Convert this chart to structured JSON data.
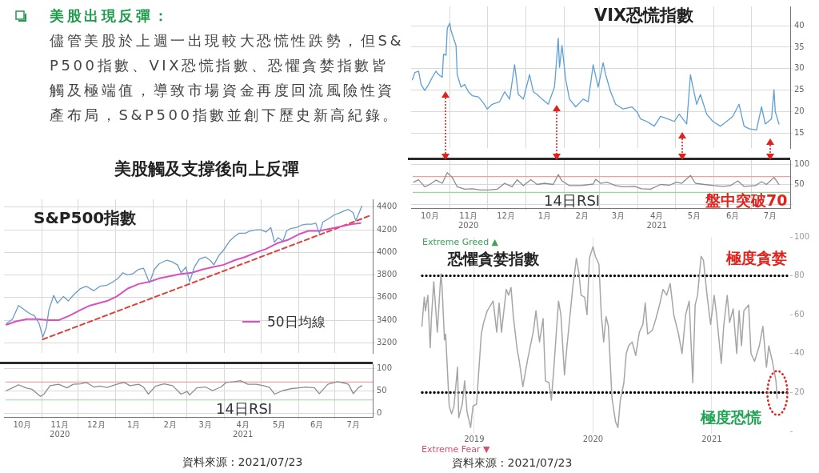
{
  "chart_data": [
    {
      "type": "other",
      "title": "美股出現反彈：",
      "subtitle": "儘管美股於上週一出現較大恐慌性跌勢，但S&P500指數、VIX恐慌指數、恐懼貪婪指數皆觸及極端值，導致市場資金再度回流風險性資產布局，S&P500指數並創下歷史新高紀錄。"
    },
    {
      "type": "line",
      "title": "美股觸及支撐後向上反彈",
      "annotations": [
        "S&P500指數"
      ],
      "xlim": [
        "2020-10-01",
        "2021-08-01"
      ],
      "xticks": [
        {
          "value": "2020-11-01",
          "label": null
        },
        {
          "value": "2020-12-01",
          "label": null
        },
        {
          "value": "2021-01-01",
          "label": null
        },
        {
          "value": "2021-02-01",
          "label": null
        },
        {
          "value": "2021-03-01",
          "label": null
        },
        {
          "value": "2021-04-01",
          "label": null
        },
        {
          "value": "2021-05-01",
          "label": null
        },
        {
          "value": "2021-06-01",
          "label": null
        },
        {
          "value": "2021-07-01",
          "label": null
        }
      ],
      "ylim": [
        3110,
        4470
      ],
      "yticks": [
        3200,
        3400,
        3600,
        3800,
        4000,
        4200,
        4400
      ],
      "tick_labels": "y",
      "grid": true,
      "legend": "bottom right",
      "series": [
        {
          "color": "#6b9bc8",
          "x": [
            "2020-10-03",
            "2020-10-08",
            "2020-10-13",
            "2020-10-18",
            "2020-10-22",
            "2020-10-26",
            "2020-10-30",
            "2020-11-02",
            "2020-11-05",
            "2020-11-07",
            "2020-11-11",
            "2020-11-14",
            "2020-11-19",
            "2020-11-23",
            "2020-11-27",
            "2020-12-03",
            "2020-12-08",
            "2020-12-14",
            "2020-12-19",
            "2020-12-25",
            "2020-12-30",
            "2021-01-03",
            "2021-01-07",
            "2021-01-11",
            "2021-01-15",
            "2021-01-20",
            "2021-01-24",
            "2021-01-29",
            "2021-02-02",
            "2021-02-06",
            "2021-02-12",
            "2021-02-16",
            "2021-02-21",
            "2021-02-24",
            "2021-02-28",
            "2021-03-03",
            "2021-03-07",
            "2021-03-11",
            "2021-03-16",
            "2021-03-20",
            "2021-03-23",
            "2021-03-27",
            "2021-03-31",
            "2021-04-05",
            "2021-04-09",
            "2021-04-13",
            "2021-04-18",
            "2021-04-22",
            "2021-04-27",
            "2021-05-01",
            "2021-05-05",
            "2021-05-09",
            "2021-05-12",
            "2021-05-15",
            "2021-05-19",
            "2021-05-22",
            "2021-05-25",
            "2021-05-30",
            "2021-06-03",
            "2021-06-07",
            "2021-06-12",
            "2021-06-15",
            "2021-06-18",
            "2021-06-21",
            "2021-06-26",
            "2021-06-30",
            "2021-07-05",
            "2021-07-09",
            "2021-07-12",
            "2021-07-16",
            "2021-07-18",
            "2021-07-20",
            "2021-07-23"
          ],
          "values": [
            3370,
            3410,
            3530,
            3490,
            3460,
            3440,
            3370,
            3250,
            3340,
            3490,
            3620,
            3550,
            3610,
            3570,
            3620,
            3680,
            3700,
            3660,
            3700,
            3710,
            3740,
            3770,
            3820,
            3800,
            3810,
            3850,
            3860,
            3730,
            3850,
            3900,
            3930,
            3920,
            3890,
            3820,
            3870,
            3740,
            3870,
            3940,
            3960,
            3930,
            3890,
            3970,
            4020,
            4100,
            4140,
            4170,
            4170,
            4190,
            4200,
            4200,
            4180,
            4220,
            4090,
            4130,
            4100,
            4190,
            4210,
            4220,
            4240,
            4250,
            4250,
            4260,
            4170,
            4270,
            4300,
            4330,
            4350,
            4370,
            4380,
            4350,
            4280,
            4330,
            4410
          ]
        },
        {
          "name": "50日均線",
          "color": "#d94fc0",
          "x": [
            "2020-10-03",
            "2020-10-11",
            "2020-10-20",
            "2020-10-29",
            "2020-11-06",
            "2020-11-15",
            "2020-11-24",
            "2020-12-03",
            "2020-12-11",
            "2020-12-25",
            "2021-01-02",
            "2021-01-11",
            "2021-01-20",
            "2021-01-29",
            "2021-02-06",
            "2021-02-15",
            "2021-02-24",
            "2021-03-05",
            "2021-03-14",
            "2021-03-22",
            "2021-03-31",
            "2021-04-09",
            "2021-04-18",
            "2021-04-27",
            "2021-05-05",
            "2021-05-14",
            "2021-05-23",
            "2021-06-01",
            "2021-06-09",
            "2021-06-18",
            "2021-06-27",
            "2021-07-06",
            "2021-07-15",
            "2021-07-22"
          ],
          "values": [
            3360,
            3390,
            3410,
            3410,
            3400,
            3400,
            3440,
            3490,
            3530,
            3570,
            3610,
            3680,
            3720,
            3740,
            3770,
            3790,
            3810,
            3820,
            3850,
            3870,
            3890,
            3930,
            3960,
            4000,
            4030,
            4080,
            4110,
            4160,
            4190,
            4190,
            4210,
            4230,
            4250,
            4260
          ]
        },
        {
          "color": "#e0413b",
          "line_style": "dashed",
          "x": [
            "2020-11-02",
            "2021-07-31"
          ],
          "values": [
            3230,
            4330
          ]
        }
      ]
    },
    {
      "type": "line",
      "annotations": [
        "14日RSI",
        "資料來源 : 2021/07/23"
      ],
      "xlim": [
        "2020-10-01",
        "2021-08-01"
      ],
      "xticks": [
        {
          "value": "2020-10-16",
          "label": "10月"
        },
        {
          "value": "2020-11-01",
          "label": null
        },
        {
          "value": "2020-11-16",
          "label": "11月\n2020"
        },
        {
          "value": "2020-12-01",
          "label": null
        },
        {
          "value": "2020-12-16",
          "label": "12月"
        },
        {
          "value": "2021-01-01",
          "label": null
        },
        {
          "value": "2021-01-16",
          "label": "1月"
        },
        {
          "value": "2021-02-01",
          "label": null
        },
        {
          "value": "2021-02-15",
          "label": "2月"
        },
        {
          "value": "2021-03-01",
          "label": null
        },
        {
          "value": "2021-03-16",
          "label": "3月"
        },
        {
          "value": "2021-04-01",
          "label": null
        },
        {
          "value": "2021-04-16",
          "label": "4月\n2021"
        },
        {
          "value": "2021-05-01",
          "label": null
        },
        {
          "value": "2021-05-16",
          "label": "5月"
        },
        {
          "value": "2021-06-01",
          "label": null
        },
        {
          "value": "2021-06-16",
          "label": "6月"
        },
        {
          "value": "2021-07-01",
          "label": null
        },
        {
          "value": "2021-07-16",
          "label": "7月"
        }
      ],
      "ylim": [
        -8,
        110
      ],
      "yticks": [
        0,
        50,
        100
      ],
      "grid": true,
      "ref_lines": [
        {
          "axis": "y",
          "value": 70,
          "color": "#f0a0a0"
        },
        {
          "axis": "y",
          "value": 30,
          "color": "#9ad89a"
        }
      ],
      "color": "#8c8c8c",
      "x": [
        "2020-10-03",
        "2020-10-08",
        "2020-10-13",
        "2020-10-19",
        "2020-10-24",
        "2020-10-31",
        "2020-11-03",
        "2020-11-08",
        "2020-11-15",
        "2020-11-22",
        "2020-11-27",
        "2020-12-03",
        "2020-12-08",
        "2020-12-14",
        "2020-12-19",
        "2020-12-25",
        "2021-01-02",
        "2021-01-08",
        "2021-01-13",
        "2021-01-20",
        "2021-01-24",
        "2021-01-28",
        "2021-02-03",
        "2021-02-10",
        "2021-02-17",
        "2021-02-24",
        "2021-03-01",
        "2021-03-03",
        "2021-03-09",
        "2021-03-16",
        "2021-03-22",
        "2021-03-29",
        "2021-04-02",
        "2021-04-09",
        "2021-04-14",
        "2021-04-20",
        "2021-04-27",
        "2021-05-03",
        "2021-05-08",
        "2021-05-12",
        "2021-05-19",
        "2021-05-25",
        "2021-06-01",
        "2021-06-07",
        "2021-06-14",
        "2021-06-18",
        "2021-06-25",
        "2021-07-03",
        "2021-07-08",
        "2021-07-12",
        "2021-07-16",
        "2021-07-20",
        "2021-07-23"
      ],
      "values": [
        51,
        57,
        64,
        57,
        54,
        38,
        43,
        62,
        65,
        57,
        65,
        66,
        69,
        59,
        61,
        58,
        65,
        69,
        62,
        65,
        59,
        43,
        61,
        66,
        62,
        43,
        49,
        41,
        57,
        59,
        51,
        59,
        69,
        71,
        73,
        65,
        65,
        62,
        58,
        43,
        51,
        55,
        57,
        59,
        57,
        44,
        65,
        71,
        68,
        65,
        44,
        57,
        62
      ]
    },
    {
      "type": "line",
      "title": "VIX恐慌指數",
      "xlim": [
        "2020-10-01",
        "2021-08-01"
      ],
      "xticks": [
        {
          "value": "2020-11-01",
          "label": null
        },
        {
          "value": "2020-12-01",
          "label": null
        },
        {
          "value": "2021-01-01",
          "label": null
        },
        {
          "value": "2021-02-01",
          "label": null
        },
        {
          "value": "2021-03-01",
          "label": null
        },
        {
          "value": "2021-04-01",
          "label": null
        },
        {
          "value": "2021-05-01",
          "label": null
        },
        {
          "value": "2021-06-01",
          "label": null
        },
        {
          "value": "2021-07-01",
          "label": null
        }
      ],
      "ylim": [
        11.5,
        44.5
      ],
      "yticks": [
        15,
        20,
        25,
        30,
        35,
        40
      ],
      "tick_labels": "y",
      "grid": true,
      "color": "#5d9fd8",
      "x": [
        "2020-10-02",
        "2020-10-04",
        "2020-10-07",
        "2020-10-09",
        "2020-10-12",
        "2020-10-15",
        "2020-10-18",
        "2020-10-21",
        "2020-10-23",
        "2020-10-26",
        "2020-10-27",
        "2020-10-29",
        "2020-10-30",
        "2020-11-01",
        "2020-11-02",
        "2020-11-04",
        "2020-11-06",
        "2020-11-07",
        "2020-11-10",
        "2020-11-13",
        "2020-11-16",
        "2020-11-19",
        "2020-11-24",
        "2020-11-28",
        "2020-12-01",
        "2020-12-05",
        "2020-12-11",
        "2020-12-15",
        "2020-12-19",
        "2020-12-23",
        "2020-12-26",
        "2020-12-30",
        "2021-01-04",
        "2021-01-07",
        "2021-01-10",
        "2021-01-14",
        "2021-01-19",
        "2021-01-24",
        "2021-01-27",
        "2021-01-28",
        "2021-01-30",
        "2021-02-02",
        "2021-02-05",
        "2021-02-10",
        "2021-02-16",
        "2021-02-20",
        "2021-02-24",
        "2021-02-28",
        "2021-03-04",
        "2021-03-06",
        "2021-03-10",
        "2021-03-14",
        "2021-03-20",
        "2021-03-27",
        "2021-03-31",
        "2021-04-03",
        "2021-04-08",
        "2021-04-14",
        "2021-04-19",
        "2021-04-25",
        "2021-04-30",
        "2021-05-04",
        "2021-05-10",
        "2021-05-13",
        "2021-05-15",
        "2021-05-18",
        "2021-05-21",
        "2021-05-26",
        "2021-05-31",
        "2021-06-06",
        "2021-06-11",
        "2021-06-16",
        "2021-06-21",
        "2021-06-25",
        "2021-06-29",
        "2021-07-05",
        "2021-07-09",
        "2021-07-12",
        "2021-07-17",
        "2021-07-19",
        "2021-07-20",
        "2021-07-23"
      ],
      "values": [
        27.4,
        29.1,
        29.4,
        26.3,
        24.9,
        26.3,
        28,
        29.4,
        28.6,
        28,
        33.4,
        33.1,
        39.4,
        40.6,
        38.9,
        37.1,
        35.4,
        28.6,
        25.7,
        26.3,
        24.6,
        23.7,
        23.4,
        22,
        20.6,
        21.7,
        22.3,
        24.6,
        22.9,
        30.9,
        24,
        22.9,
        28.6,
        24.6,
        24,
        22.9,
        21.7,
        25.7,
        37.1,
        30.3,
        35.4,
        27.4,
        22.9,
        21.1,
        22.9,
        22.3,
        30.9,
        25.7,
        31.4,
        28.6,
        24.6,
        21.7,
        20.6,
        21.1,
        20,
        18.3,
        17.7,
        16.6,
        18.9,
        18.3,
        17.7,
        19.4,
        17.1,
        28.6,
        25.7,
        21.7,
        24,
        19.4,
        17.7,
        16.6,
        17.7,
        18.9,
        21.7,
        16.6,
        16,
        15.7,
        21.1,
        17.1,
        18.3,
        25.1,
        20,
        17.1
      ]
    },
    {
      "type": "line",
      "annotations": [
        "14日RSI",
        "盤中突破70"
      ],
      "xlim": [
        "2020-10-01",
        "2021-08-01"
      ],
      "xticks": [
        {
          "value": "2020-10-16",
          "label": "10月"
        },
        {
          "value": "2020-11-01",
          "label": null
        },
        {
          "value": "2020-11-16",
          "label": "11月\n2020"
        },
        {
          "value": "2020-12-01",
          "label": null
        },
        {
          "value": "2020-12-16",
          "label": "12月"
        },
        {
          "value": "2021-01-01",
          "label": null
        },
        {
          "value": "2021-01-16",
          "label": "1月"
        },
        {
          "value": "2021-02-01",
          "label": null
        },
        {
          "value": "2021-02-15",
          "label": "2月"
        },
        {
          "value": "2021-03-01",
          "label": null
        },
        {
          "value": "2021-03-16",
          "label": "3月"
        },
        {
          "value": "2021-04-01",
          "label": null
        },
        {
          "value": "2021-04-16",
          "label": "4月\n2021"
        },
        {
          "value": "2021-05-01",
          "label": null
        },
        {
          "value": "2021-05-16",
          "label": "5月"
        },
        {
          "value": "2021-06-01",
          "label": null
        },
        {
          "value": "2021-06-16",
          "label": "6月"
        },
        {
          "value": "2021-07-01",
          "label": null
        },
        {
          "value": "2021-07-16",
          "label": "7月"
        }
      ],
      "ylim": [
        -10,
        112
      ],
      "yticks": [
        {
          "value": 0,
          "label": null
        },
        50,
        100
      ],
      "grid": true,
      "ref_lines": [
        {
          "axis": "y",
          "value": 70,
          "color": "#f0a0a0"
        },
        {
          "axis": "y",
          "value": 30,
          "color": "#9ad89a"
        }
      ],
      "color": "#8c8c8c",
      "x": [
        "2020-10-03",
        "2020-10-07",
        "2020-10-12",
        "2020-10-16",
        "2020-10-21",
        "2020-10-26",
        "2020-10-30",
        "2020-11-03",
        "2020-11-07",
        "2020-11-13",
        "2020-11-19",
        "2020-11-26",
        "2020-12-02",
        "2020-12-09",
        "2020-12-15",
        "2020-12-21",
        "2020-12-25",
        "2020-12-30",
        "2021-01-05",
        "2021-01-10",
        "2021-01-16",
        "2021-01-23",
        "2021-01-27",
        "2021-01-30",
        "2021-02-05",
        "2021-02-14",
        "2021-02-24",
        "2021-02-26",
        "2021-03-02",
        "2021-03-07",
        "2021-03-14",
        "2021-03-20",
        "2021-03-29",
        "2021-04-04",
        "2021-04-11",
        "2021-04-19",
        "2021-04-26",
        "2021-05-02",
        "2021-05-06",
        "2021-05-13",
        "2021-05-17",
        "2021-05-24",
        "2021-06-01",
        "2021-06-08",
        "2021-06-14",
        "2021-06-20",
        "2021-06-25",
        "2021-07-04",
        "2021-07-09",
        "2021-07-13",
        "2021-07-19",
        "2021-07-23"
      ],
      "values": [
        56,
        62,
        44,
        50,
        61,
        53,
        80,
        68,
        44,
        38,
        39,
        36,
        36,
        38,
        53,
        44,
        62,
        47,
        62,
        50,
        53,
        50,
        75,
        59,
        47,
        47,
        51,
        63,
        53,
        56,
        47,
        44,
        45,
        39,
        38,
        50,
        48,
        56,
        53,
        73,
        53,
        50,
        47,
        45,
        47,
        59,
        45,
        47,
        57,
        50,
        68,
        50
      ]
    },
    {
      "type": "line",
      "title": "恐懼貪婪指數",
      "annotations": [
        "Extreme Greed ▲",
        "Extreme Fear ▼",
        "極度貪婪",
        "極度恐慌",
        "資料來源 : 2021/07/23"
      ],
      "xlim": [
        2018.55,
        2021.66
      ],
      "xticks": [
        2019,
        2020,
        2021
      ],
      "ylim": [
        0,
        100
      ],
      "yticks": [
        {
          "value": 0,
          "label": null
        },
        20,
        40,
        60,
        80,
        100
      ],
      "grid": "x",
      "ref_lines": [
        {
          "axis": "y",
          "value": 80,
          "color": "#000000",
          "line_style": "dotted"
        },
        {
          "axis": "y",
          "value": 20,
          "color": "#000000",
          "line_style": "dotted"
        }
      ],
      "color": "#a6a6a6",
      "x": [
        2018.56,
        2018.58,
        2018.59,
        2018.61,
        2018.63,
        2018.64,
        2018.66,
        2018.69,
        2018.72,
        2018.73,
        2018.75,
        2018.76,
        2018.79,
        2018.81,
        2018.83,
        2018.86,
        2018.87,
        2018.9,
        2018.92,
        2018.94,
        2018.97,
        2018.99,
        2019.02,
        2019.04,
        2019.06,
        2019.08,
        2019.11,
        2019.16,
        2019.19,
        2019.21,
        2019.23,
        2019.27,
        2019.29,
        2019.31,
        2019.33,
        2019.36,
        2019.38,
        2019.41,
        2019.45,
        2019.5,
        2019.52,
        2019.55,
        2019.58,
        2019.6,
        2019.63,
        2019.65,
        2019.67,
        2019.71,
        2019.73,
        2019.76,
        2019.78,
        2019.83,
        2019.86,
        2019.88,
        2019.9,
        2019.93,
        2019.95,
        2019.97,
        2020.0,
        2020.02,
        2020.05,
        2020.07,
        2020.09,
        2020.11,
        2020.13,
        2020.16,
        2020.19,
        2020.21,
        2020.23,
        2020.26,
        2020.28,
        2020.3,
        2020.33,
        2020.36,
        2020.39,
        2020.42,
        2020.44,
        2020.46,
        2020.5,
        2020.53,
        2020.56,
        2020.59,
        2020.62,
        2020.65,
        2020.68,
        2020.72,
        2020.75,
        2020.78,
        2020.81,
        2020.84,
        2020.86,
        2020.88,
        2020.91,
        2020.93,
        2020.96,
        2020.99,
        2021.02,
        2021.04,
        2021.08,
        2021.1,
        2021.13,
        2021.15,
        2021.18,
        2021.21,
        2021.23,
        2021.25,
        2021.27,
        2021.31,
        2021.33,
        2021.36,
        2021.4,
        2021.43,
        2021.46,
        2021.48,
        2021.51,
        2021.54,
        2021.55
      ],
      "values": [
        54,
        69,
        62,
        70,
        43,
        58,
        77,
        51,
        81,
        74,
        47,
        50,
        13,
        9,
        13,
        33,
        7,
        14,
        26,
        10,
        2,
        13,
        14,
        32,
        50,
        56,
        62,
        67,
        51,
        66,
        51,
        73,
        70,
        74,
        59,
        43,
        36,
        23,
        37,
        52,
        62,
        46,
        58,
        26,
        25,
        16,
        32,
        67,
        60,
        29,
        43,
        74,
        89,
        82,
        70,
        69,
        60,
        89,
        95,
        90,
        86,
        60,
        46,
        59,
        54,
        17,
        5,
        2,
        16,
        25,
        40,
        44,
        46,
        39,
        51,
        55,
        66,
        50,
        52,
        58,
        65,
        73,
        70,
        76,
        60,
        50,
        40,
        60,
        67,
        25,
        65,
        70,
        90,
        88,
        70,
        55,
        70,
        60,
        35,
        54,
        70,
        56,
        63,
        40,
        62,
        44,
        62,
        65,
        40,
        36,
        44,
        54,
        33,
        44,
        36,
        26,
        17
      ]
    }
  ]
}
